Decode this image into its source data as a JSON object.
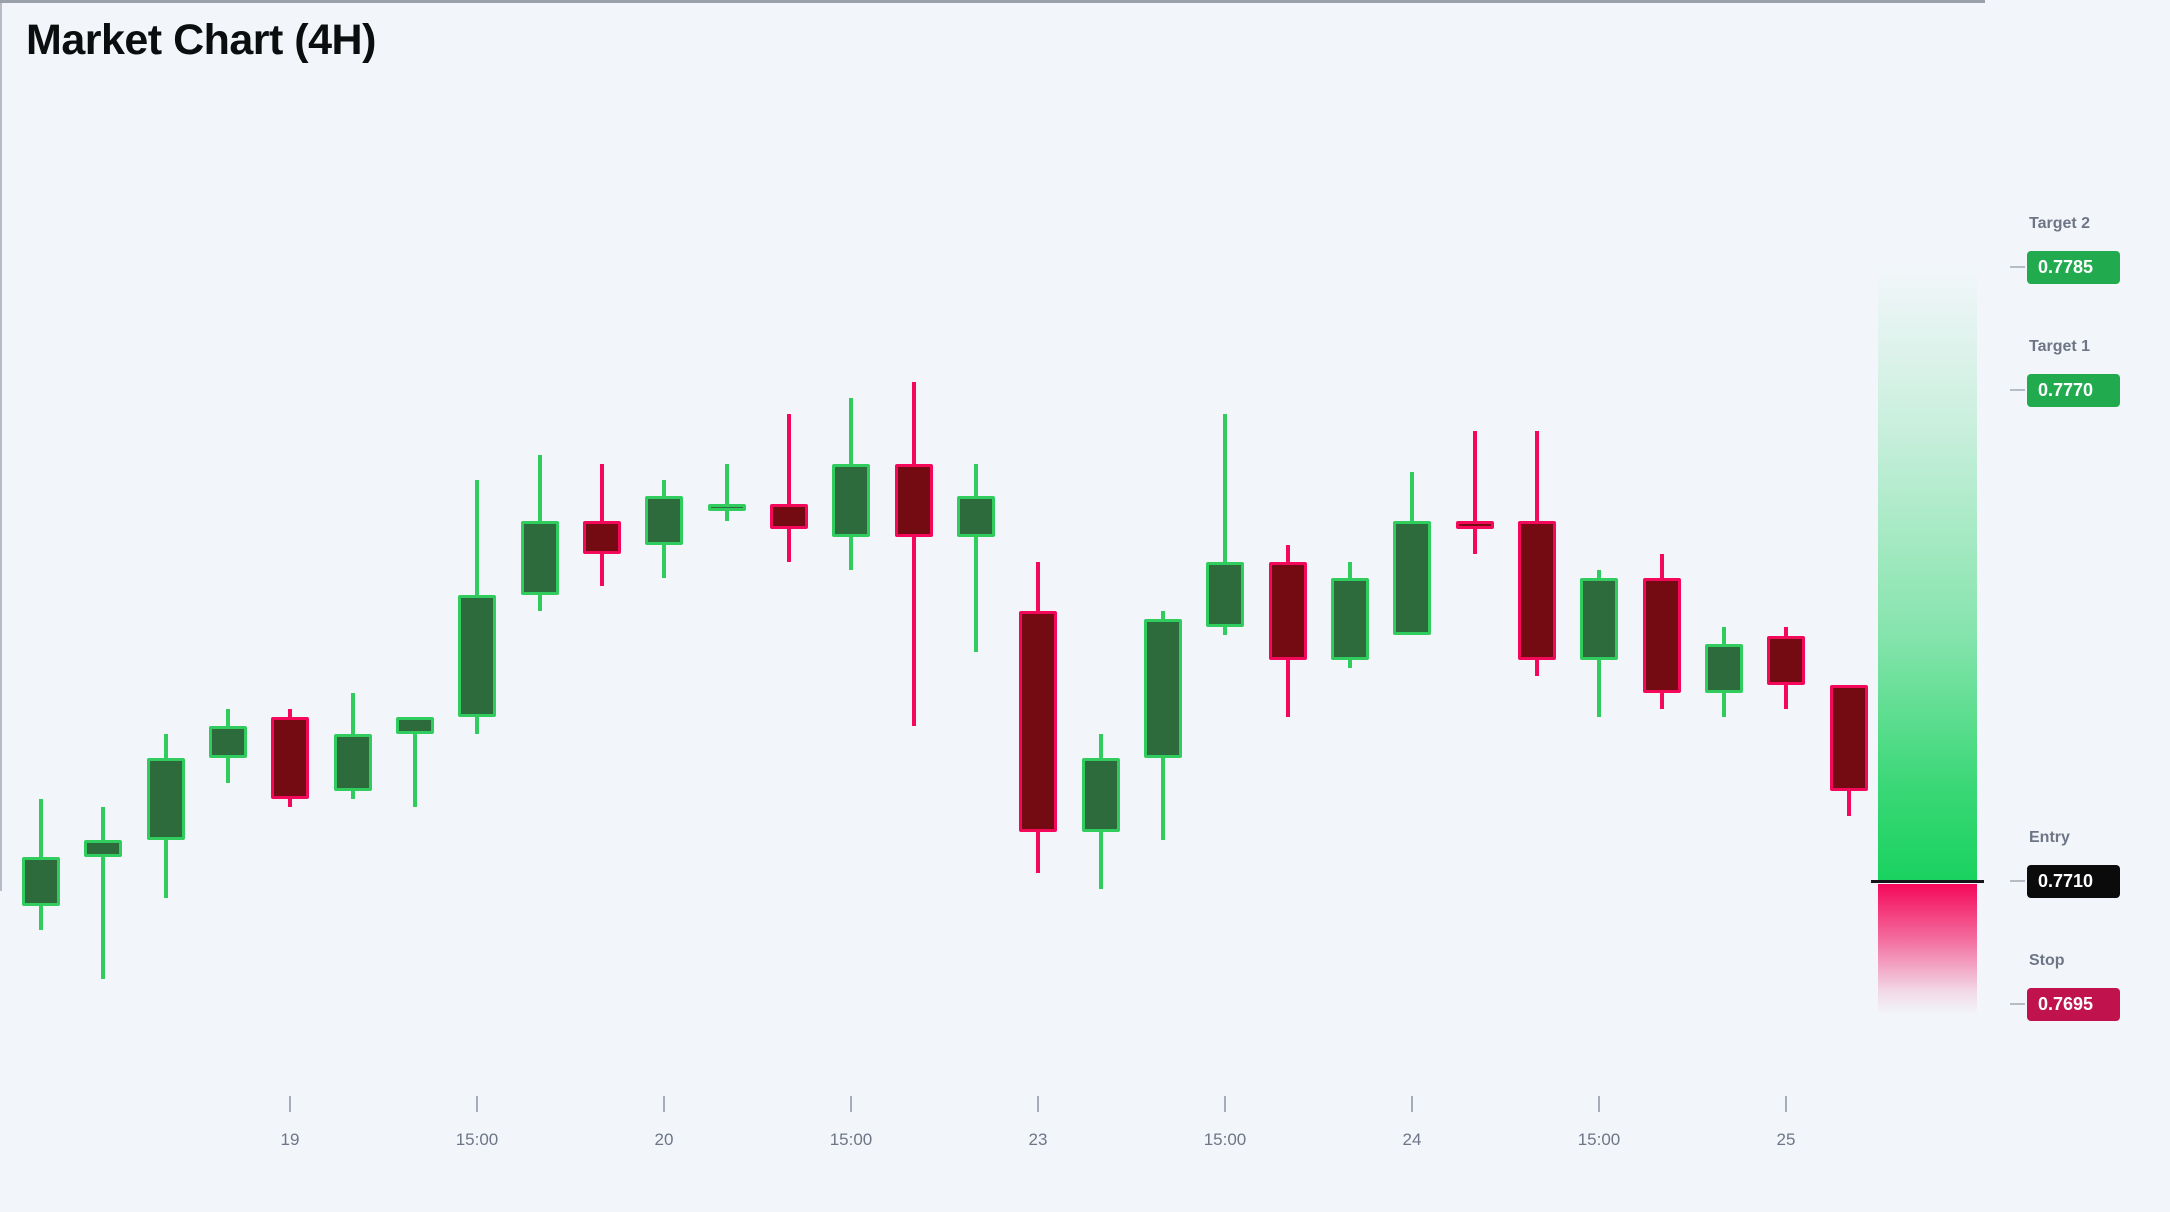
{
  "title": "Market Chart (4H)",
  "colors": {
    "background": "#f2f6fa",
    "bull_body": "#2d6a3c",
    "bull_edge": "#30cd5e",
    "bear_body": "#740b12",
    "bear_edge": "#f4085a",
    "target_badge": "#21ab4e",
    "entry_badge": "#0b0b0b",
    "stop_badge": "#c0134e",
    "profit_zone_green": "#19d25f",
    "loss_zone_pink": "#f4095a",
    "axis_gray": "#9aa1ab",
    "label_gray": "#6e7586"
  },
  "chart_data": {
    "type": "candlestick",
    "title": "Market Chart (4H)",
    "timeframe": "4H",
    "grid": false,
    "x_ticks": [
      {
        "label": "19",
        "candle_index": 4
      },
      {
        "label": "15:00",
        "candle_index": 7
      },
      {
        "label": "20",
        "candle_index": 10
      },
      {
        "label": "15:00",
        "candle_index": 13
      },
      {
        "label": "23",
        "candle_index": 16
      },
      {
        "label": "15:00",
        "candle_index": 19
      },
      {
        "label": "24",
        "candle_index": 22
      },
      {
        "label": "15:00",
        "candle_index": 25
      },
      {
        "label": "25",
        "candle_index": 28
      }
    ],
    "y_range": {
      "top_price": 0.7793,
      "bottom_price": 0.7684
    },
    "candles": [
      {
        "o": 0.7707,
        "h": 0.772,
        "l": 0.7704,
        "c": 0.7713,
        "color": "g"
      },
      {
        "o": 0.7713,
        "h": 0.7719,
        "l": 0.7698,
        "c": 0.7715,
        "color": "g"
      },
      {
        "o": 0.7715,
        "h": 0.7728,
        "l": 0.7708,
        "c": 0.7725,
        "color": "g"
      },
      {
        "o": 0.7725,
        "h": 0.7731,
        "l": 0.7722,
        "c": 0.7729,
        "color": "g"
      },
      {
        "o": 0.773,
        "h": 0.7731,
        "l": 0.7719,
        "c": 0.772,
        "color": "r"
      },
      {
        "o": 0.7721,
        "h": 0.7733,
        "l": 0.772,
        "c": 0.7728,
        "color": "g"
      },
      {
        "o": 0.7728,
        "h": 0.773,
        "l": 0.7719,
        "c": 0.773,
        "color": "g"
      },
      {
        "o": 0.773,
        "h": 0.7759,
        "l": 0.7728,
        "c": 0.7745,
        "color": "g"
      },
      {
        "o": 0.7745,
        "h": 0.7762,
        "l": 0.7743,
        "c": 0.7754,
        "color": "g"
      },
      {
        "o": 0.7754,
        "h": 0.7761,
        "l": 0.7746,
        "c": 0.775,
        "color": "r"
      },
      {
        "o": 0.7751,
        "h": 0.7759,
        "l": 0.7747,
        "c": 0.7757,
        "color": "g"
      },
      {
        "o": 0.7756,
        "h": 0.7761,
        "l": 0.7754,
        "c": 0.7756,
        "color": "g"
      },
      {
        "o": 0.7756,
        "h": 0.7767,
        "l": 0.7749,
        "c": 0.7753,
        "color": "r"
      },
      {
        "o": 0.7752,
        "h": 0.7769,
        "l": 0.7748,
        "c": 0.7761,
        "color": "g"
      },
      {
        "o": 0.7761,
        "h": 0.7771,
        "l": 0.7729,
        "c": 0.7752,
        "color": "r"
      },
      {
        "o": 0.7752,
        "h": 0.7761,
        "l": 0.7738,
        "c": 0.7757,
        "color": "g"
      },
      {
        "o": 0.7743,
        "h": 0.7749,
        "l": 0.7711,
        "c": 0.7716,
        "color": "r"
      },
      {
        "o": 0.7716,
        "h": 0.7728,
        "l": 0.7709,
        "c": 0.7725,
        "color": "g"
      },
      {
        "o": 0.7725,
        "h": 0.7743,
        "l": 0.7715,
        "c": 0.7742,
        "color": "g"
      },
      {
        "o": 0.7741,
        "h": 0.7767,
        "l": 0.774,
        "c": 0.7749,
        "color": "g"
      },
      {
        "o": 0.7749,
        "h": 0.7751,
        "l": 0.773,
        "c": 0.7737,
        "color": "r"
      },
      {
        "o": 0.7737,
        "h": 0.7749,
        "l": 0.7736,
        "c": 0.7747,
        "color": "g"
      },
      {
        "o": 0.774,
        "h": 0.776,
        "l": 0.774,
        "c": 0.7754,
        "color": "g"
      },
      {
        "o": 0.7754,
        "h": 0.7765,
        "l": 0.775,
        "c": 0.7753,
        "color": "r"
      },
      {
        "o": 0.7754,
        "h": 0.7765,
        "l": 0.7735,
        "c": 0.7737,
        "color": "r"
      },
      {
        "o": 0.7737,
        "h": 0.7748,
        "l": 0.773,
        "c": 0.7747,
        "color": "g"
      },
      {
        "o": 0.7747,
        "h": 0.775,
        "l": 0.7731,
        "c": 0.7733,
        "color": "r"
      },
      {
        "o": 0.7733,
        "h": 0.7741,
        "l": 0.773,
        "c": 0.7739,
        "color": "g"
      },
      {
        "o": 0.774,
        "h": 0.7741,
        "l": 0.7731,
        "c": 0.7734,
        "color": "r"
      },
      {
        "o": 0.7734,
        "h": 0.7734,
        "l": 0.7718,
        "c": 0.7721,
        "color": "r"
      }
    ],
    "price_levels": [
      {
        "name": "Target 2",
        "value": 0.7785,
        "display": "0.7785",
        "kind": "target"
      },
      {
        "name": "Target 1",
        "value": 0.777,
        "display": "0.7770",
        "kind": "target"
      },
      {
        "name": "Entry",
        "value": 0.771,
        "display": "0.7710",
        "kind": "entry"
      },
      {
        "name": "Stop",
        "value": 0.7695,
        "display": "0.7695",
        "kind": "stop"
      }
    ],
    "zones": [
      {
        "type": "profit",
        "from_price": 0.771,
        "to_price": 0.7785
      },
      {
        "type": "loss",
        "from_price": 0.771,
        "to_price": 0.7695
      }
    ]
  }
}
